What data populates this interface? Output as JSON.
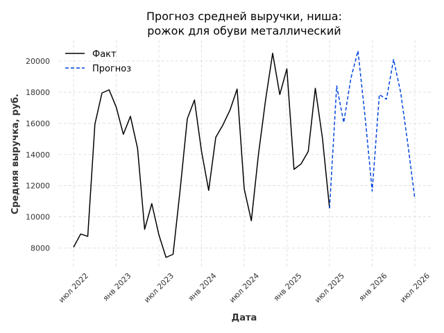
{
  "chart_data": {
    "type": "line",
    "title_line1": "Прогноз средней выручки, ниша:",
    "title_line2": "рожок для обуви металлический",
    "xlabel": "Дата",
    "ylabel": "Средняя выручка, руб.",
    "ylim": [
      7000,
      21300
    ],
    "yticks": [
      8000,
      10000,
      12000,
      14000,
      16000,
      18000,
      20000
    ],
    "xticks": [
      {
        "date": "2022-07",
        "label": "июл 2022"
      },
      {
        "date": "2023-01",
        "label": "янв 2023"
      },
      {
        "date": "2023-07",
        "label": "июл 2023"
      },
      {
        "date": "2024-01",
        "label": "янв 2024"
      },
      {
        "date": "2024-07",
        "label": "июл 2024"
      },
      {
        "date": "2025-01",
        "label": "янв 2025"
      },
      {
        "date": "2025-07",
        "label": "июл 2025"
      },
      {
        "date": "2026-01",
        "label": "янв 2026"
      },
      {
        "date": "2026-07",
        "label": "июл 2026"
      }
    ],
    "grid": true,
    "legend_position": "top-left",
    "series": [
      {
        "name": "Факт",
        "color": "#000000",
        "style": "solid",
        "x": [
          "2022-07",
          "2022-08",
          "2022-09",
          "2022-10",
          "2022-11",
          "2022-12",
          "2023-01",
          "2023-02",
          "2023-03",
          "2023-04",
          "2023-05",
          "2023-06",
          "2023-07",
          "2023-08",
          "2023-09",
          "2023-10",
          "2023-11",
          "2023-12",
          "2024-01",
          "2024-02",
          "2024-03",
          "2024-04",
          "2024-05",
          "2024-06",
          "2024-07",
          "2024-08",
          "2024-09",
          "2024-10",
          "2024-11",
          "2024-12",
          "2025-01",
          "2025-02",
          "2025-03",
          "2025-04",
          "2025-05",
          "2025-06",
          "2025-07"
        ],
        "y": [
          8050,
          8900,
          8750,
          15950,
          17950,
          18150,
          17050,
          15300,
          16450,
          14400,
          9200,
          10850,
          8850,
          7400,
          7600,
          11800,
          16300,
          17500,
          14200,
          11700,
          15100,
          15900,
          16850,
          18200,
          11800,
          9750,
          14000,
          17500,
          20500,
          17850,
          19500,
          13050,
          13400,
          14200,
          18250,
          15050,
          10550
        ]
      },
      {
        "name": "Прогноз",
        "color": "#0044dd",
        "style": "dashed",
        "x": [
          "2025-07",
          "2025-08",
          "2025-09",
          "2025-10",
          "2025-11",
          "2025-12",
          "2026-01",
          "2026-02",
          "2026-03",
          "2026-04",
          "2026-05",
          "2026-06",
          "2026-07"
        ],
        "y": [
          10550,
          18400,
          16050,
          18900,
          20650,
          16400,
          11650,
          17850,
          17550,
          20100,
          18000,
          14700,
          11150
        ]
      }
    ]
  }
}
